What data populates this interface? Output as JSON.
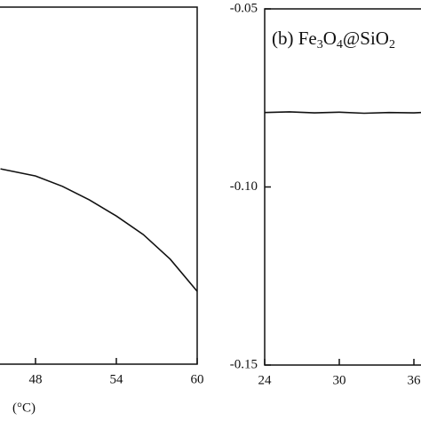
{
  "chart_data": [
    {
      "type": "line",
      "x_label": "(°C)",
      "x": [
        45.4,
        48,
        50,
        52,
        54,
        56,
        58,
        60
      ],
      "series": [
        {
          "color": "#111111",
          "values": [
            0.547,
            0.527,
            0.498,
            0.46,
            0.415,
            0.363,
            0.294,
            0.204
          ]
        }
      ],
      "xlim": [
        44,
        60
      ],
      "xticks": [
        48,
        54,
        60
      ],
      "ylim": [
        0,
        1
      ]
    },
    {
      "type": "line",
      "annotation": [
        {
          "text": "(b) Fe",
          "sub": false
        },
        {
          "text": "3",
          "sub": true
        },
        {
          "text": "O",
          "sub": false
        },
        {
          "text": "4",
          "sub": true
        },
        {
          "text": "@SiO",
          "sub": false
        },
        {
          "text": "2",
          "sub": true
        }
      ],
      "x": [
        24,
        26,
        28,
        30,
        32,
        34,
        36,
        36.6
      ],
      "series": [
        {
          "color": "#111111",
          "values": [
            -0.0791,
            -0.0789,
            -0.0792,
            -0.079,
            -0.0793,
            -0.0791,
            -0.0792,
            -0.0791
          ]
        }
      ],
      "xlim": [
        24,
        40
      ],
      "xticks": [
        24,
        30,
        36
      ],
      "ylim": [
        -0.15,
        -0.05
      ],
      "yticks": [
        {
          "value": -0.05,
          "label": "-0.05"
        },
        {
          "value": -0.1,
          "label": "-0.10"
        },
        {
          "value": -0.15,
          "label": "-0.15"
        }
      ]
    }
  ]
}
